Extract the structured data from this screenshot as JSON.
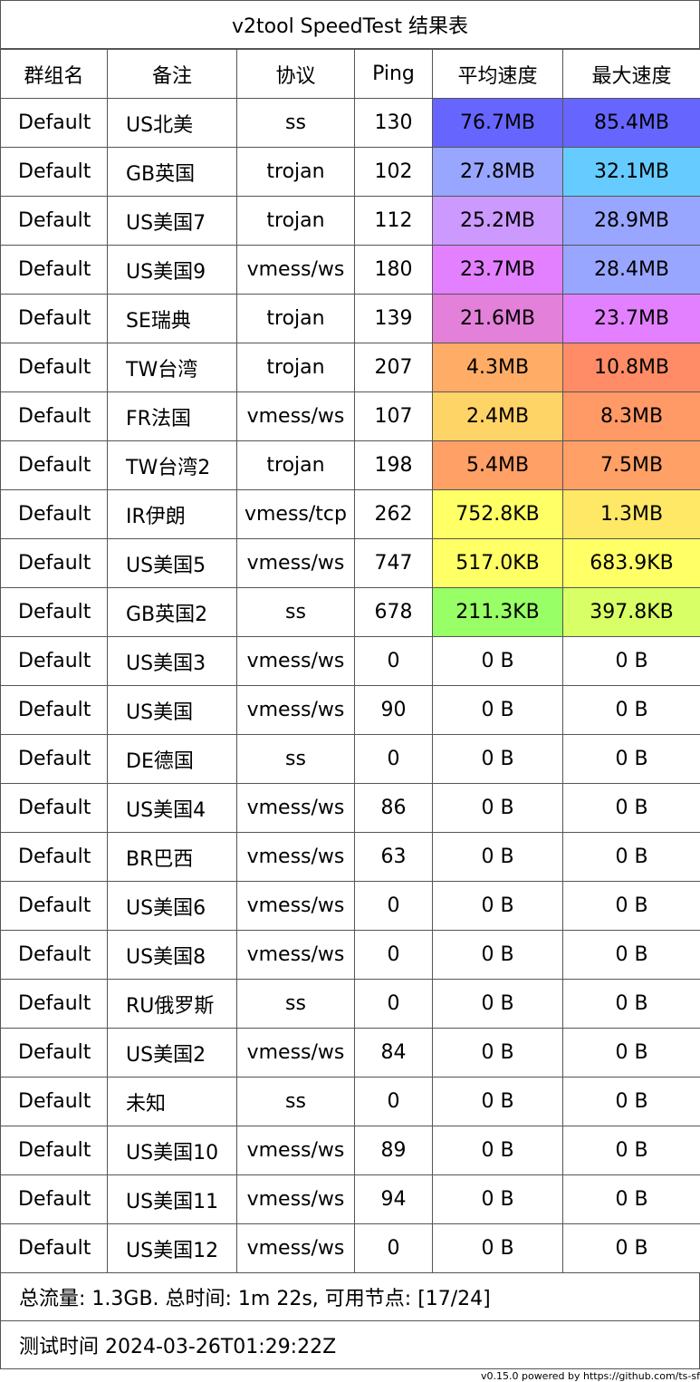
{
  "title": "v2tool SpeedTest 结果表",
  "headers": [
    "群组名",
    "备注",
    "协议",
    "Ping",
    "平均速度",
    "最大速度"
  ],
  "rows": [
    {
      "group": "Default",
      "remark": "US北美",
      "protocol": "ss",
      "ping": "130",
      "avg": "76.7MB",
      "max": "85.4MB",
      "avg_color": "#6666ff",
      "max_color": "#6666ff"
    },
    {
      "group": "Default",
      "remark": "GB英国",
      "protocol": "trojan",
      "ping": "102",
      "avg": "27.8MB",
      "max": "32.1MB",
      "avg_color": "#99a6ff",
      "max_color": "#66ccff"
    },
    {
      "group": "Default",
      "remark": "US美国7",
      "protocol": "trojan",
      "ping": "112",
      "avg": "25.2MB",
      "max": "28.9MB",
      "avg_color": "#cc99ff",
      "max_color": "#99a6ff"
    },
    {
      "group": "Default",
      "remark": "US美国9",
      "protocol": "vmess/ws",
      "ping": "180",
      "avg": "23.7MB",
      "max": "28.4MB",
      "avg_color": "#e380ff",
      "max_color": "#99a6ff"
    },
    {
      "group": "Default",
      "remark": "SE瑞典",
      "protocol": "trojan",
      "ping": "139",
      "avg": "21.6MB",
      "max": "23.7MB",
      "avg_color": "#e380d9",
      "max_color": "#e380ff"
    },
    {
      "group": "Default",
      "remark": "TW台湾",
      "protocol": "trojan",
      "ping": "207",
      "avg": "4.3MB",
      "max": "10.8MB",
      "avg_color": "#ffad66",
      "max_color": "#ff8c66"
    },
    {
      "group": "Default",
      "remark": "FR法国",
      "protocol": "vmess/ws",
      "ping": "107",
      "avg": "2.4MB",
      "max": "8.3MB",
      "avg_color": "#ffd466",
      "max_color": "#ff9966"
    },
    {
      "group": "Default",
      "remark": "TW台湾2",
      "protocol": "trojan",
      "ping": "198",
      "avg": "5.4MB",
      "max": "7.5MB",
      "avg_color": "#ffa066",
      "max_color": "#ffa066"
    },
    {
      "group": "Default",
      "remark": "IR伊朗",
      "protocol": "vmess/tcp",
      "ping": "262",
      "avg": "752.8KB",
      "max": "1.3MB",
      "avg_color": "#ffff66",
      "max_color": "#ffe866"
    },
    {
      "group": "Default",
      "remark": "US美国5",
      "protocol": "vmess/ws",
      "ping": "747",
      "avg": "517.0KB",
      "max": "683.9KB",
      "avg_color": "#ffff66",
      "max_color": "#ffff66"
    },
    {
      "group": "Default",
      "remark": "GB英国2",
      "protocol": "ss",
      "ping": "678",
      "avg": "211.3KB",
      "max": "397.8KB",
      "avg_color": "#99ff66",
      "max_color": "#d9ff66"
    },
    {
      "group": "Default",
      "remark": "US美国3",
      "protocol": "vmess/ws",
      "ping": "0",
      "avg": "0 B",
      "max": "0 B",
      "avg_color": "#ffffff",
      "max_color": "#ffffff"
    },
    {
      "group": "Default",
      "remark": "US美国",
      "protocol": "vmess/ws",
      "ping": "90",
      "avg": "0 B",
      "max": "0 B",
      "avg_color": "#ffffff",
      "max_color": "#ffffff"
    },
    {
      "group": "Default",
      "remark": "DE德国",
      "protocol": "ss",
      "ping": "0",
      "avg": "0 B",
      "max": "0 B",
      "avg_color": "#ffffff",
      "max_color": "#ffffff"
    },
    {
      "group": "Default",
      "remark": "US美国4",
      "protocol": "vmess/ws",
      "ping": "86",
      "avg": "0 B",
      "max": "0 B",
      "avg_color": "#ffffff",
      "max_color": "#ffffff"
    },
    {
      "group": "Default",
      "remark": "BR巴西",
      "protocol": "vmess/ws",
      "ping": "63",
      "avg": "0 B",
      "max": "0 B",
      "avg_color": "#ffffff",
      "max_color": "#ffffff"
    },
    {
      "group": "Default",
      "remark": "US美国6",
      "protocol": "vmess/ws",
      "ping": "0",
      "avg": "0 B",
      "max": "0 B",
      "avg_color": "#ffffff",
      "max_color": "#ffffff"
    },
    {
      "group": "Default",
      "remark": "US美国8",
      "protocol": "vmess/ws",
      "ping": "0",
      "avg": "0 B",
      "max": "0 B",
      "avg_color": "#ffffff",
      "max_color": "#ffffff"
    },
    {
      "group": "Default",
      "remark": "RU俄罗斯",
      "protocol": "ss",
      "ping": "0",
      "avg": "0 B",
      "max": "0 B",
      "avg_color": "#ffffff",
      "max_color": "#ffffff"
    },
    {
      "group": "Default",
      "remark": "US美国2",
      "protocol": "vmess/ws",
      "ping": "84",
      "avg": "0 B",
      "max": "0 B",
      "avg_color": "#ffffff",
      "max_color": "#ffffff"
    },
    {
      "group": "Default",
      "remark": "未知",
      "protocol": "ss",
      "ping": "0",
      "avg": "0 B",
      "max": "0 B",
      "avg_color": "#ffffff",
      "max_color": "#ffffff"
    },
    {
      "group": "Default",
      "remark": "US美国10",
      "protocol": "vmess/ws",
      "ping": "89",
      "avg": "0 B",
      "max": "0 B",
      "avg_color": "#ffffff",
      "max_color": "#ffffff"
    },
    {
      "group": "Default",
      "remark": "US美国11",
      "protocol": "vmess/ws",
      "ping": "94",
      "avg": "0 B",
      "max": "0 B",
      "avg_color": "#ffffff",
      "max_color": "#ffffff"
    },
    {
      "group": "Default",
      "remark": "US美国12",
      "protocol": "vmess/ws",
      "ping": "0",
      "avg": "0 B",
      "max": "0 B",
      "avg_color": "#ffffff",
      "max_color": "#ffffff"
    }
  ],
  "summary": "总流量: 1.3GB. 总时间: 1m 22s, 可用节点: [17/24]",
  "test_time": "测试时间 2024-03-26T01:29:22Z",
  "credit": "v0.15.0 powered by https://github.com/ts-sf"
}
